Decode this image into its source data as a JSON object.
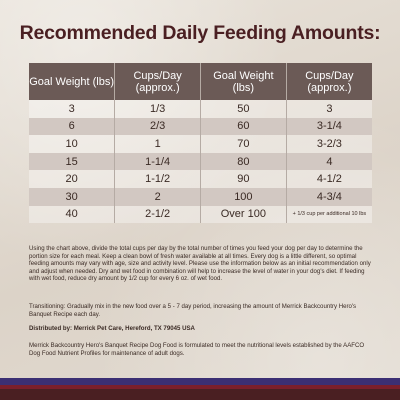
{
  "title": "Recommended Daily Feeding Amounts:",
  "table": {
    "headers": [
      "Goal Weight (lbs)",
      "Cups/Day (approx.)",
      "Goal Weight (lbs)",
      "Cups/Day (approx.)"
    ],
    "rows": [
      [
        "3",
        "1/3",
        "50",
        "3"
      ],
      [
        "6",
        "2/3",
        "60",
        "3-1/4"
      ],
      [
        "10",
        "1",
        "70",
        "3-2/3"
      ],
      [
        "15",
        "1-1/4",
        "80",
        "4"
      ],
      [
        "20",
        "1-1/2",
        "90",
        "4-1/2"
      ],
      [
        "30",
        "2",
        "100",
        "4-3/4"
      ],
      [
        "40",
        "2-1/2",
        "Over 100",
        "+ 1/3 cup per additional 10 lbs"
      ]
    ]
  },
  "paragraphs": {
    "instructions": "Using the chart above, divide the total cups per day by the total number of times you feed your dog per day to determine the portion size for each meal. Keep a clean bowl of fresh water available at all times. Every dog is a little different, so optimal feeding amounts may vary with age, size and activity level. Please use the information below as an initial recommendation only and adjust when needed. Dry and wet food in combination will help to increase the level of water in your dog's diet. If feeding with wet food, reduce dry amount by 1/2 cup for every 6 oz. of wet food.",
    "transitioning": "Transitioning: Gradually mix in the new food over a 5 - 7 day period, increasing the amount of Merrick Backcountry Hero's Banquet Recipe each day.",
    "distributor": "Distributed by: Merrick Pet Care, Hereford, TX 79045 USA",
    "aafco": "Merrick Backcountry Hero's Banquet Recipe Dog Food is formulated to meet the nutritional levels established by the AAFCO Dog Food Nutrient Profiles for maintenance of adult dogs."
  },
  "colors": {
    "title": "#4a1f22",
    "header_bg": "#6b5a56",
    "stripe_blue": "#3b2f73",
    "stripe_red": "#7a1f2b",
    "stripe_brown": "#4a1f22"
  }
}
